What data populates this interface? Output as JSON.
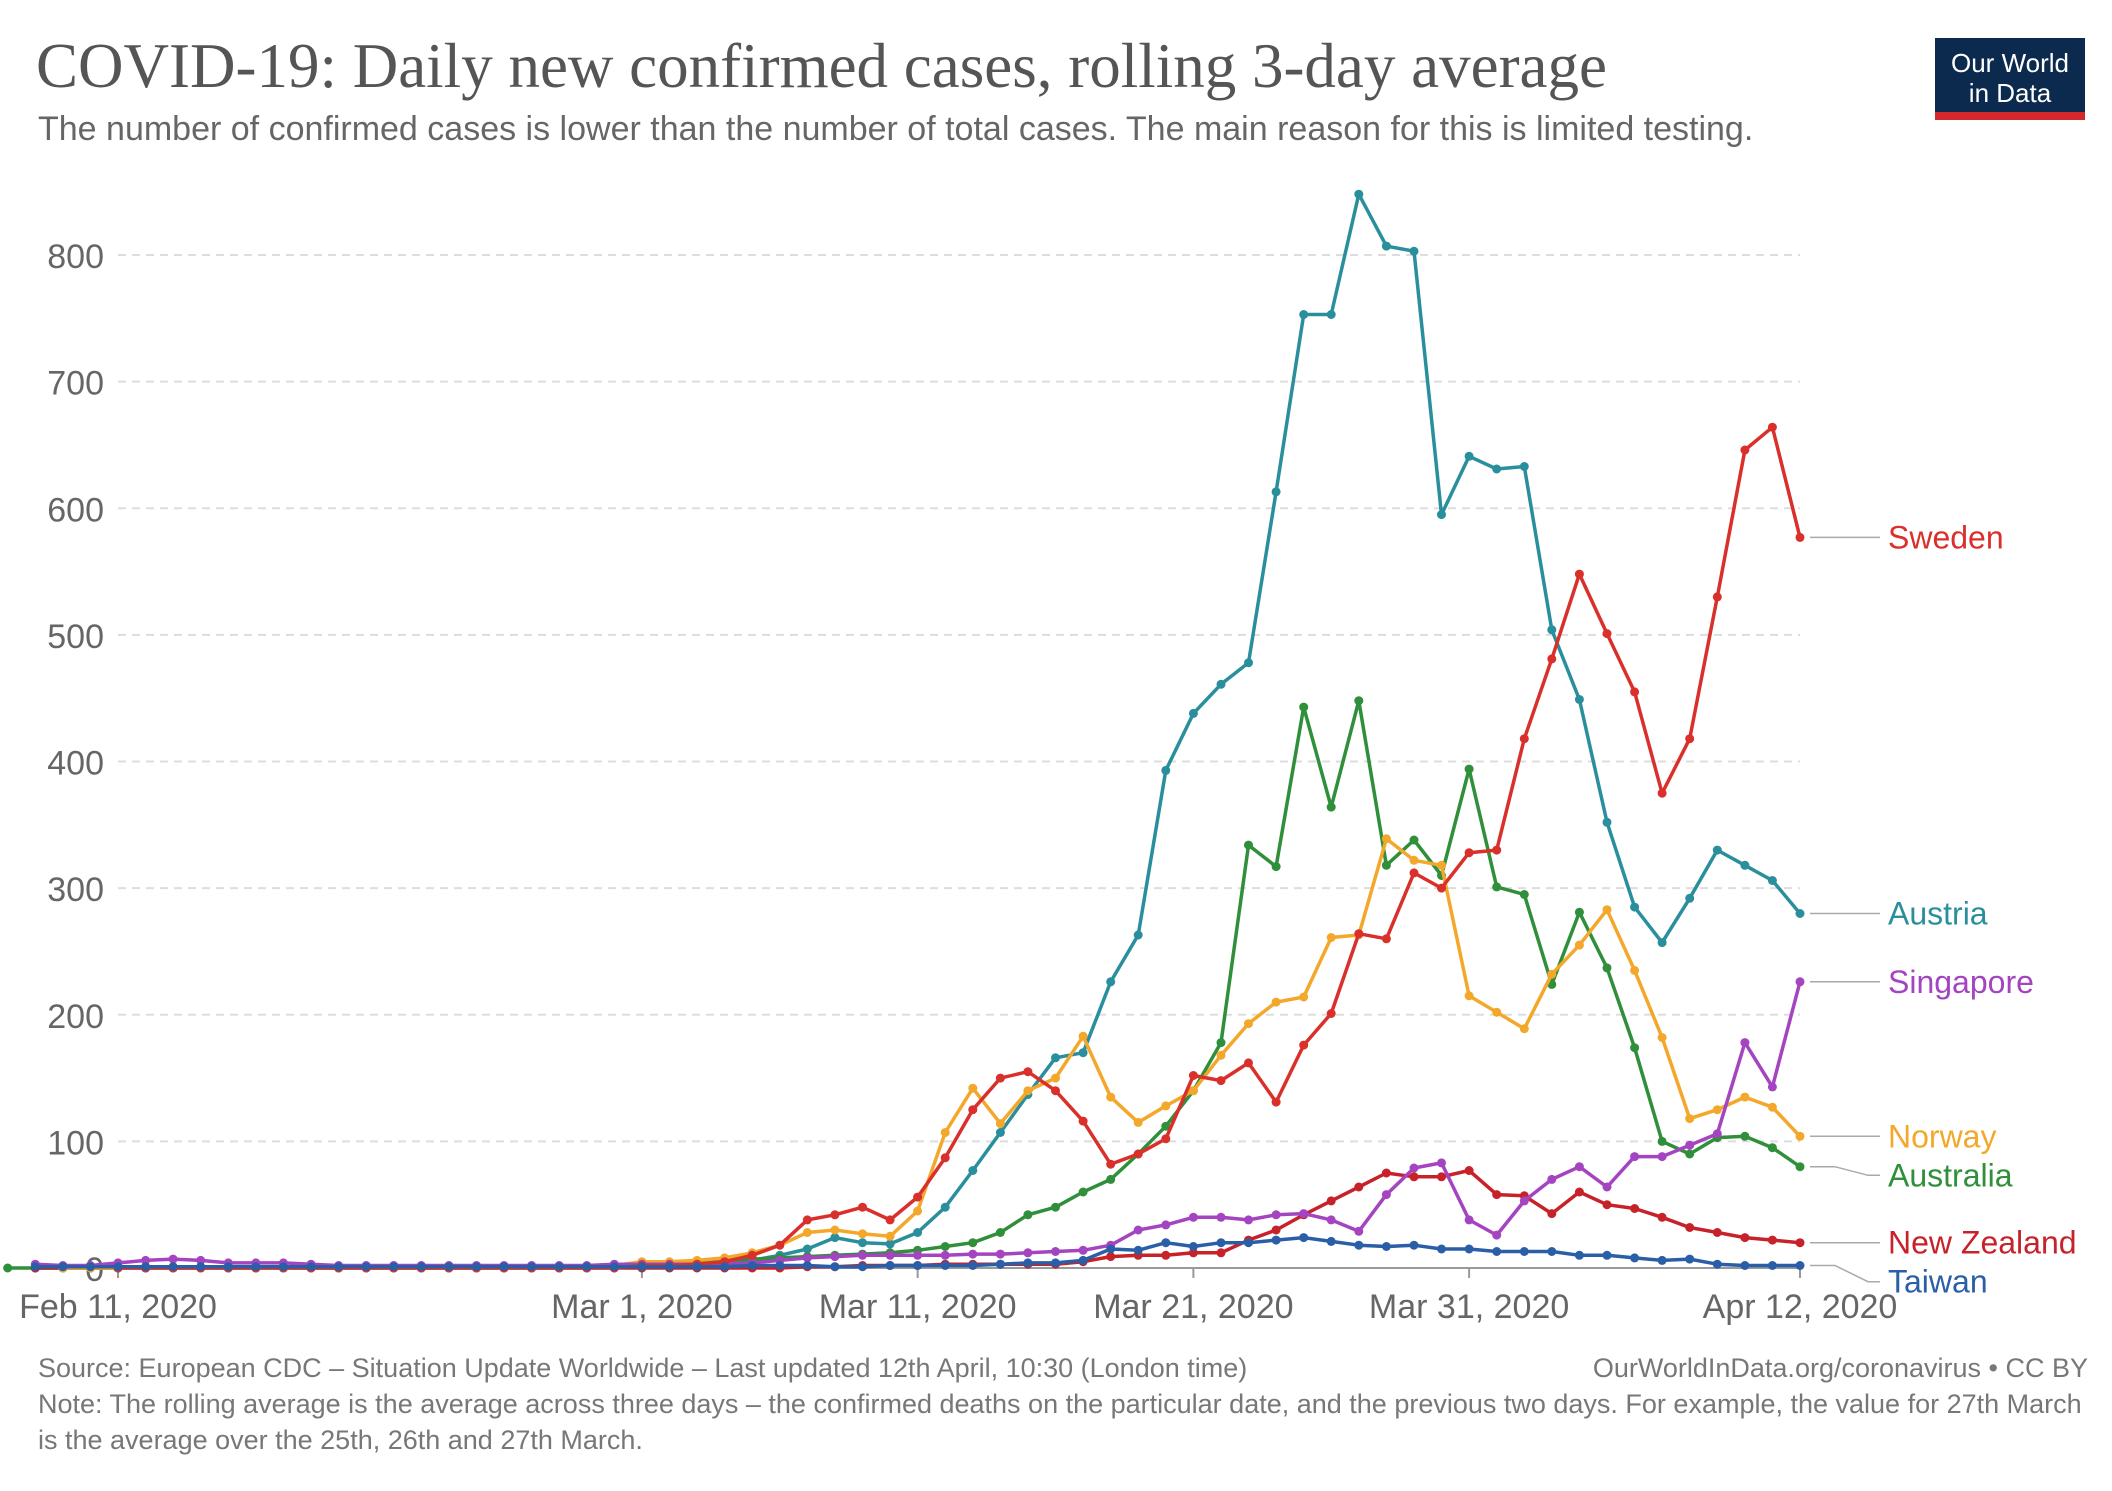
{
  "header": {
    "title": "COVID-19: Daily new confirmed cases, rolling 3-day average",
    "subtitle": "The number of confirmed cases is lower than the number of total cases. The main reason for this is limited testing.",
    "logo_line1": "Our World",
    "logo_line2": "in Data"
  },
  "footer": {
    "source": "Source: European CDC – Situation Update Worldwide – Last updated 12th April, 10:30 (London time)",
    "url": "OurWorldInData.org/coronavirus • CC BY",
    "note": "Note: The rolling average is the average across three days – the confirmed deaths on the particular date, and the previous two days. For example, the value for 27th March is the average over the 25th, 26th and 27th March."
  },
  "chart_data": {
    "type": "line",
    "title": "COVID-19: Daily new confirmed cases, rolling 3-day average",
    "xlabel": "",
    "ylabel": "",
    "x_start": "2020-02-11",
    "x_end": "2020-04-12",
    "xlim": [
      "Feb 11, 2020",
      "Apr 12, 2020"
    ],
    "ylim": [
      0,
      850
    ],
    "y_ticks": [
      0,
      100,
      200,
      300,
      400,
      500,
      600,
      700,
      800
    ],
    "x_ticks": [
      {
        "label": "Feb 11, 2020",
        "day": 0
      },
      {
        "label": "Mar 1, 2020",
        "day": 19
      },
      {
        "label": "Mar 11, 2020",
        "day": 29
      },
      {
        "label": "Mar 21, 2020",
        "day": 39
      },
      {
        "label": "Mar 31, 2020",
        "day": 49
      },
      {
        "label": "Apr 12, 2020",
        "day": 61
      }
    ],
    "grid": "horizontal dashed",
    "legend": "right, labels at line ends",
    "series": [
      {
        "name": "Austria",
        "color": "#2a8f9c",
        "values": [
          0,
          0,
          0,
          0,
          0,
          0,
          0,
          0,
          0,
          0,
          0,
          0,
          0,
          0,
          0,
          0,
          0,
          0,
          0,
          0,
          0,
          1,
          2,
          3,
          4,
          5,
          6,
          10,
          15,
          24,
          20,
          19,
          28,
          48,
          77,
          107,
          137,
          166,
          170,
          226,
          263,
          393,
          438,
          461,
          478,
          613,
          753,
          753,
          848,
          807,
          803,
          595,
          641,
          631,
          633,
          504,
          449,
          352,
          285,
          257,
          292,
          330,
          318,
          306,
          280
        ]
      },
      {
        "name": "Australia",
        "color": "#2f8f3a",
        "values": [
          0,
          0,
          0,
          0,
          0,
          0,
          0,
          0,
          0,
          0,
          0,
          0,
          0,
          0,
          0,
          0,
          0,
          0,
          0,
          0,
          0,
          1,
          2,
          3,
          4,
          5,
          6,
          7,
          8,
          9,
          10,
          11,
          12,
          14,
          17,
          20,
          28,
          42,
          48,
          60,
          70,
          90,
          112,
          140,
          178,
          334,
          317,
          443,
          364,
          448,
          318,
          338,
          310,
          394,
          301,
          295,
          224,
          281,
          237,
          174,
          100,
          90,
          103,
          104,
          95,
          80
        ]
      },
      {
        "name": "New Zealand",
        "color": "#c7222a",
        "values": [
          0,
          0,
          0,
          0,
          0,
          0,
          0,
          0,
          0,
          0,
          0,
          0,
          0,
          0,
          0,
          0,
          0,
          0,
          0,
          0,
          0,
          0,
          0,
          0,
          0,
          0,
          0,
          0,
          1,
          1,
          2,
          2,
          2,
          3,
          3,
          3,
          3,
          3,
          5,
          9,
          10,
          10,
          12,
          12,
          22,
          30,
          42,
          53,
          64,
          75,
          72,
          72,
          77,
          58,
          57,
          43,
          60,
          50,
          47,
          40,
          32,
          28,
          24,
          22,
          20
        ]
      },
      {
        "name": "Norway",
        "color": "#f4a82b",
        "values": [
          0,
          0,
          0,
          0,
          0,
          0,
          0,
          0,
          0,
          0,
          0,
          0,
          0,
          0,
          0,
          0,
          0,
          0,
          0,
          0,
          2,
          5,
          5,
          6,
          8,
          12,
          18,
          28,
          30,
          27,
          25,
          45,
          107,
          142,
          114,
          140,
          150,
          183,
          135,
          115,
          128,
          140,
          168,
          193,
          210,
          214,
          261,
          263,
          339,
          322,
          318,
          215,
          202,
          189,
          232,
          255,
          283,
          235,
          182,
          118,
          125,
          135,
          127,
          104
        ]
      },
      {
        "name": "Singapore",
        "color": "#a444c0",
        "values": [
          3,
          2,
          2,
          4,
          6,
          7,
          6,
          4,
          4,
          4,
          3,
          2,
          2,
          2,
          2,
          2,
          2,
          2,
          2,
          2,
          2,
          3,
          3,
          3,
          3,
          3,
          4,
          6,
          8,
          9,
          10,
          10,
          10,
          10,
          11,
          11,
          12,
          13,
          14,
          18,
          30,
          34,
          40,
          40,
          38,
          42,
          43,
          38,
          29,
          58,
          79,
          83,
          38,
          26,
          53,
          70,
          80,
          64,
          88,
          88,
          97,
          106,
          178,
          143,
          226
        ]
      },
      {
        "name": "Sweden",
        "color": "#d9302c",
        "values": [
          0,
          0,
          0,
          0,
          0,
          0,
          0,
          0,
          0,
          0,
          0,
          0,
          0,
          0,
          0,
          0,
          0,
          0,
          0,
          2,
          2,
          3,
          5,
          10,
          18,
          38,
          42,
          48,
          38,
          56,
          87,
          125,
          150,
          155,
          140,
          116,
          82,
          90,
          102,
          152,
          148,
          162,
          131,
          176,
          201,
          264,
          260,
          312,
          300,
          328,
          330,
          418,
          481,
          548,
          501,
          455,
          375,
          418,
          530,
          646,
          664,
          577
        ]
      },
      {
        "name": "Taiwan",
        "color": "#2a5fa8",
        "values": [
          1,
          1,
          1,
          1,
          1,
          1,
          1,
          1,
          1,
          1,
          1,
          1,
          1,
          1,
          1,
          1,
          1,
          1,
          1,
          1,
          1,
          1,
          1,
          1,
          1,
          1,
          2,
          2,
          2,
          1,
          1,
          2,
          2,
          2,
          2,
          3,
          4,
          4,
          6,
          15,
          14,
          20,
          17,
          20,
          20,
          22,
          24,
          21,
          18,
          17,
          18,
          15,
          15,
          13,
          13,
          13,
          10,
          10,
          8,
          6,
          7,
          3,
          2,
          2,
          2
        ]
      }
    ]
  }
}
